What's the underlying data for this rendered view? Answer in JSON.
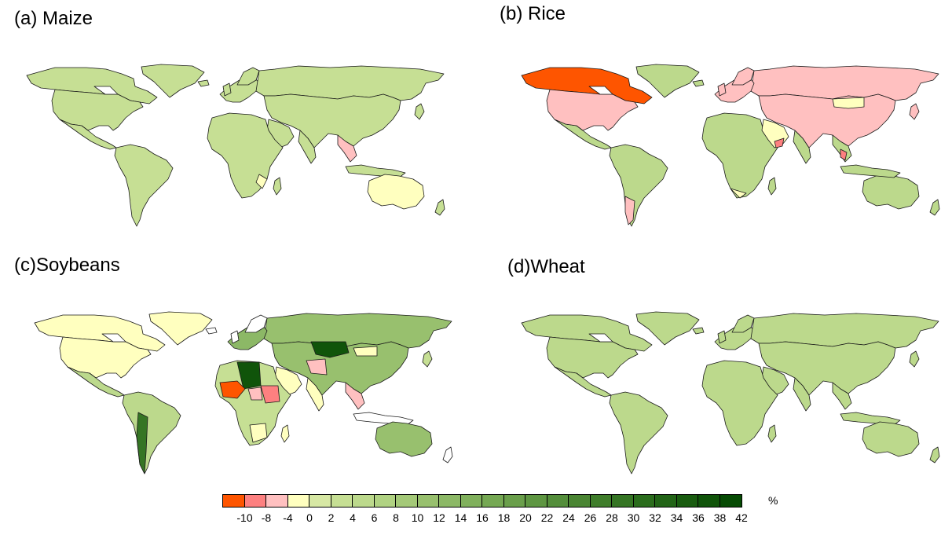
{
  "panels": [
    {
      "id": "maize",
      "title": "(a) Maize"
    },
    {
      "id": "rice",
      "title": "(b) Rice"
    },
    {
      "id": "soybeans",
      "title": "(c)Soybeans"
    },
    {
      "id": "wheat",
      "title": "(d)Wheat"
    }
  ],
  "legend": {
    "unit": "%",
    "tick_labels": [
      "-10",
      "-8",
      "-4",
      "0",
      "2",
      "4",
      "6",
      "8",
      "10",
      "12",
      "14",
      "16",
      "18",
      "20",
      "22",
      "24",
      "26",
      "28",
      "30",
      "32",
      "34",
      "36",
      "38",
      "42"
    ],
    "colors": [
      "#fe5500",
      "#fd8080",
      "#ffc0c0",
      "#ffffbf",
      "#d7e8a4",
      "#c6df94",
      "#bcd98c",
      "#b0d282",
      "#a4c978",
      "#98c06e",
      "#8cb866",
      "#80b05c",
      "#75a853",
      "#6a9f4b",
      "#5e9642",
      "#548e3b",
      "#4a8533",
      "#3f7d2b",
      "#357524",
      "#2b6d1d",
      "#226417",
      "#195c10",
      "#10540a",
      "#064b04"
    ]
  },
  "chart_data": [
    {
      "type": "choropleth",
      "title": "(a) Maize",
      "dominant_class": "0 to 4 % (light green)",
      "regions_highlighted": [
        {
          "region": "Australia",
          "class": "0 to 2 %"
        },
        {
          "region": "Mainland Southeast Asia (Thailand/Myanmar)",
          "class": "-4 to 0 %"
        },
        {
          "region": "Southern Africa (Mozambique)",
          "class": "0 to 2 %"
        }
      ]
    },
    {
      "type": "choropleth",
      "title": "(b) Rice",
      "regions_highlighted": [
        {
          "region": "Canada",
          "class": "< -10 %"
        },
        {
          "region": "United States",
          "class": "-8 to -4 %"
        },
        {
          "region": "Russia",
          "class": "-8 to -4 %"
        },
        {
          "region": "Europe",
          "class": "-8 to -4 %"
        },
        {
          "region": "China",
          "class": "-8 to -4 %"
        },
        {
          "region": "Mongolia",
          "class": "-4 to 0 %"
        },
        {
          "region": "Yemen",
          "class": "-10 to -8 %"
        },
        {
          "region": "Argentina",
          "class": "-8 to -4 %"
        },
        {
          "region": "Malaysia",
          "class": "-10 to -8 %"
        },
        {
          "region": "Africa",
          "class": "2 to 6 %"
        },
        {
          "region": "South America",
          "class": "2 to 6 %"
        },
        {
          "region": "Australia",
          "class": "2 to 6 %"
        },
        {
          "region": "Southern Africa",
          "class": "-4 to 2 %"
        }
      ]
    },
    {
      "type": "choropleth",
      "title": "(c)Soybeans",
      "regions_highlighted": [
        {
          "region": "Kazakhstan",
          "class": "> 38 %"
        },
        {
          "region": "Algeria",
          "class": "> 38 %"
        },
        {
          "region": "Mali / Mauritania",
          "class": "< -10 %"
        },
        {
          "region": "Niger / Chad",
          "class": "-8 to -4 %"
        },
        {
          "region": "Sudan",
          "class": "-10 to -8 %"
        },
        {
          "region": "Russia",
          "class": "14 to 20 %"
        },
        {
          "region": "Canada",
          "class": "-4 to 0 %"
        },
        {
          "region": "United States",
          "class": "-4 to 0 %"
        },
        {
          "region": "Chile",
          "class": "> 30 %"
        },
        {
          "region": "Brazil",
          "class": "2 to 6 %"
        },
        {
          "region": "Australia",
          "class": "10 to 14 %"
        },
        {
          "region": "China",
          "class": "10 to 14 %"
        },
        {
          "region": "Iran / Afghanistan",
          "class": "-8 to -4 %"
        },
        {
          "region": "Southern Africa",
          "class": "-4 to 0 %"
        }
      ]
    },
    {
      "type": "choropleth",
      "title": "(d)Wheat",
      "dominant_class": "2 to 8 % (light green)",
      "regions_highlighted": []
    }
  ]
}
